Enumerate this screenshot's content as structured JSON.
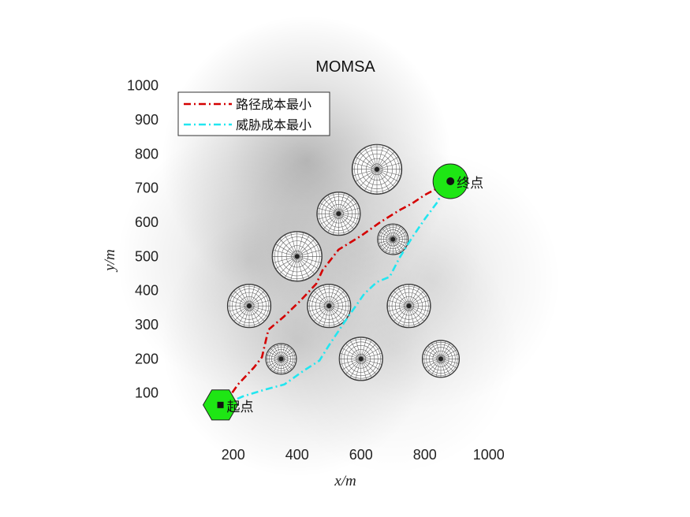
{
  "chart_data": {
    "type": "scatter",
    "title": "MOMSA",
    "xlabel": "x/m",
    "ylabel": "y/m",
    "xlim": [
      50,
      1050
    ],
    "ylim": [
      -30,
      1020
    ],
    "xticks": [
      200,
      400,
      600,
      800,
      1000
    ],
    "yticks": [
      100,
      200,
      300,
      400,
      500,
      600,
      700,
      800,
      900,
      1000
    ],
    "grid": false,
    "legend_position": "top-left",
    "background": {
      "type": "threat-field",
      "peaks": [
        {
          "x": 430,
          "y": 780,
          "strength": 0.85
        },
        {
          "x": 250,
          "y": 490,
          "strength": 0.45
        },
        {
          "x": 400,
          "y": 250,
          "strength": 0.55
        },
        {
          "x": 820,
          "y": 430,
          "strength": 0.35
        },
        {
          "x": 700,
          "y": 230,
          "strength": 0.25
        },
        {
          "x": 600,
          "y": 540,
          "strength": 0.2
        }
      ]
    },
    "obstacles": [
      {
        "x": 650,
        "y": 755,
        "r": 78
      },
      {
        "x": 530,
        "y": 625,
        "r": 68
      },
      {
        "x": 700,
        "y": 550,
        "r": 48
      },
      {
        "x": 400,
        "y": 500,
        "r": 78
      },
      {
        "x": 250,
        "y": 355,
        "r": 68
      },
      {
        "x": 500,
        "y": 355,
        "r": 68
      },
      {
        "x": 750,
        "y": 355,
        "r": 68
      },
      {
        "x": 350,
        "y": 200,
        "r": 48
      },
      {
        "x": 600,
        "y": 200,
        "r": 68
      },
      {
        "x": 850,
        "y": 200,
        "r": 58
      }
    ],
    "series": [
      {
        "name": "路径成本最小",
        "color": "#d40000",
        "style": "dash-dot",
        "points": [
          [
            170,
            65
          ],
          [
            215,
            125
          ],
          [
            265,
            175
          ],
          [
            290,
            205
          ],
          [
            310,
            285
          ],
          [
            360,
            325
          ],
          [
            410,
            370
          ],
          [
            460,
            420
          ],
          [
            480,
            460
          ],
          [
            530,
            520
          ],
          [
            600,
            560
          ],
          [
            660,
            600
          ],
          [
            720,
            635
          ],
          [
            760,
            655
          ],
          [
            800,
            680
          ],
          [
            840,
            700
          ],
          [
            870,
            720
          ]
        ]
      },
      {
        "name": "威胁成本最小",
        "color": "#22e6f0",
        "style": "dash-dot",
        "points": [
          [
            170,
            65
          ],
          [
            230,
            90
          ],
          [
            300,
            110
          ],
          [
            360,
            125
          ],
          [
            420,
            165
          ],
          [
            470,
            195
          ],
          [
            500,
            240
          ],
          [
            550,
            310
          ],
          [
            610,
            390
          ],
          [
            650,
            425
          ],
          [
            690,
            440
          ],
          [
            720,
            495
          ],
          [
            760,
            555
          ],
          [
            800,
            610
          ],
          [
            840,
            660
          ],
          [
            870,
            720
          ]
        ]
      }
    ],
    "markers": [
      {
        "label": "起点",
        "x": 160,
        "y": 65,
        "shape": "hexagon",
        "color": "#1ee614"
      },
      {
        "label": "终点",
        "x": 880,
        "y": 720,
        "shape": "circle",
        "color": "#1ee614"
      }
    ]
  }
}
